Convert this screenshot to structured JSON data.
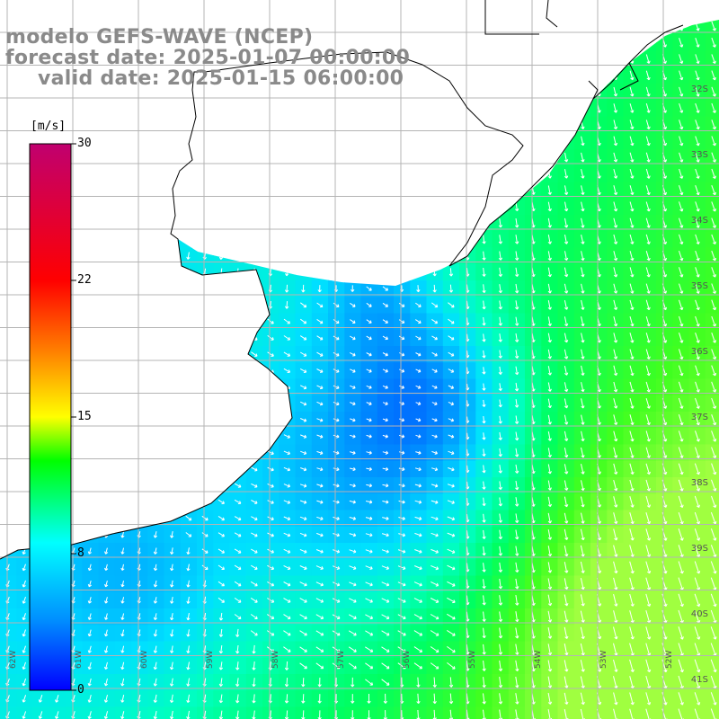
{
  "title": {
    "model": "modelo GEFS-WAVE (NCEP)",
    "forecast": "forecast date: 2025-01-07 00:00:00",
    "valid": "valid date: 2025-01-15 06:00:00"
  },
  "colorbar": {
    "unit": "[m/s]",
    "ticks": [
      "30",
      "22",
      "15",
      "8",
      "0"
    ],
    "min": 0,
    "max": 30,
    "stops": [
      "#0000ff",
      "#00a0ff",
      "#00ffff",
      "#00ff00",
      "#ffff00",
      "#ff8000",
      "#ff0000",
      "#c0006f"
    ]
  },
  "latitude_labels": [
    "32S",
    "33S",
    "34S",
    "35S",
    "36S",
    "37S",
    "38S",
    "39S",
    "40S",
    "41S"
  ],
  "longitude_labels": [
    "62W",
    "61W",
    "60W",
    "59W",
    "58W",
    "57W",
    "56W",
    "55W",
    "54W",
    "53W",
    "52W"
  ],
  "map": {
    "variable": "wind speed",
    "ocean_low_color": "#0000ff",
    "ocean_high_color": "#a0ff40",
    "land_color": "#ffffff",
    "coastline_color": "#000000",
    "grid_color": "#b4b4b4",
    "arrow_color": "#ffffff"
  }
}
